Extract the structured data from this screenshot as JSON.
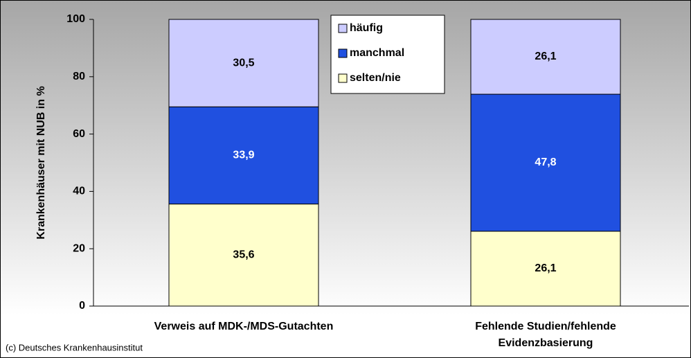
{
  "chart_data": {
    "type": "stacked_bar",
    "y_label": "Krankenhäuser mit NUB in %",
    "categories": [
      "Verweis auf MDK-/MDS-Gutachten",
      "Fehlende Studien/fehlende Evidenzbasierung"
    ],
    "series": [
      {
        "name": "selten/nie",
        "color": "#ffffcc",
        "values": [
          35.6,
          26.1
        ],
        "value_labels": [
          "35,6",
          "26,1"
        ]
      },
      {
        "name": "manchmal",
        "color": "#2050e0",
        "values": [
          33.9,
          47.8
        ],
        "value_labels": [
          "33,9",
          "47,8"
        ]
      },
      {
        "name": "häufig",
        "color": "#ccccff",
        "values": [
          30.5,
          26.1
        ],
        "value_labels": [
          "30,5",
          "26,1"
        ]
      }
    ],
    "ylim": [
      0,
      100
    ],
    "yticks": [
      0,
      20,
      40,
      60,
      80,
      100
    ],
    "legend": "top-center",
    "credit": "(c) Deutsches Krankenhausinstitut"
  }
}
